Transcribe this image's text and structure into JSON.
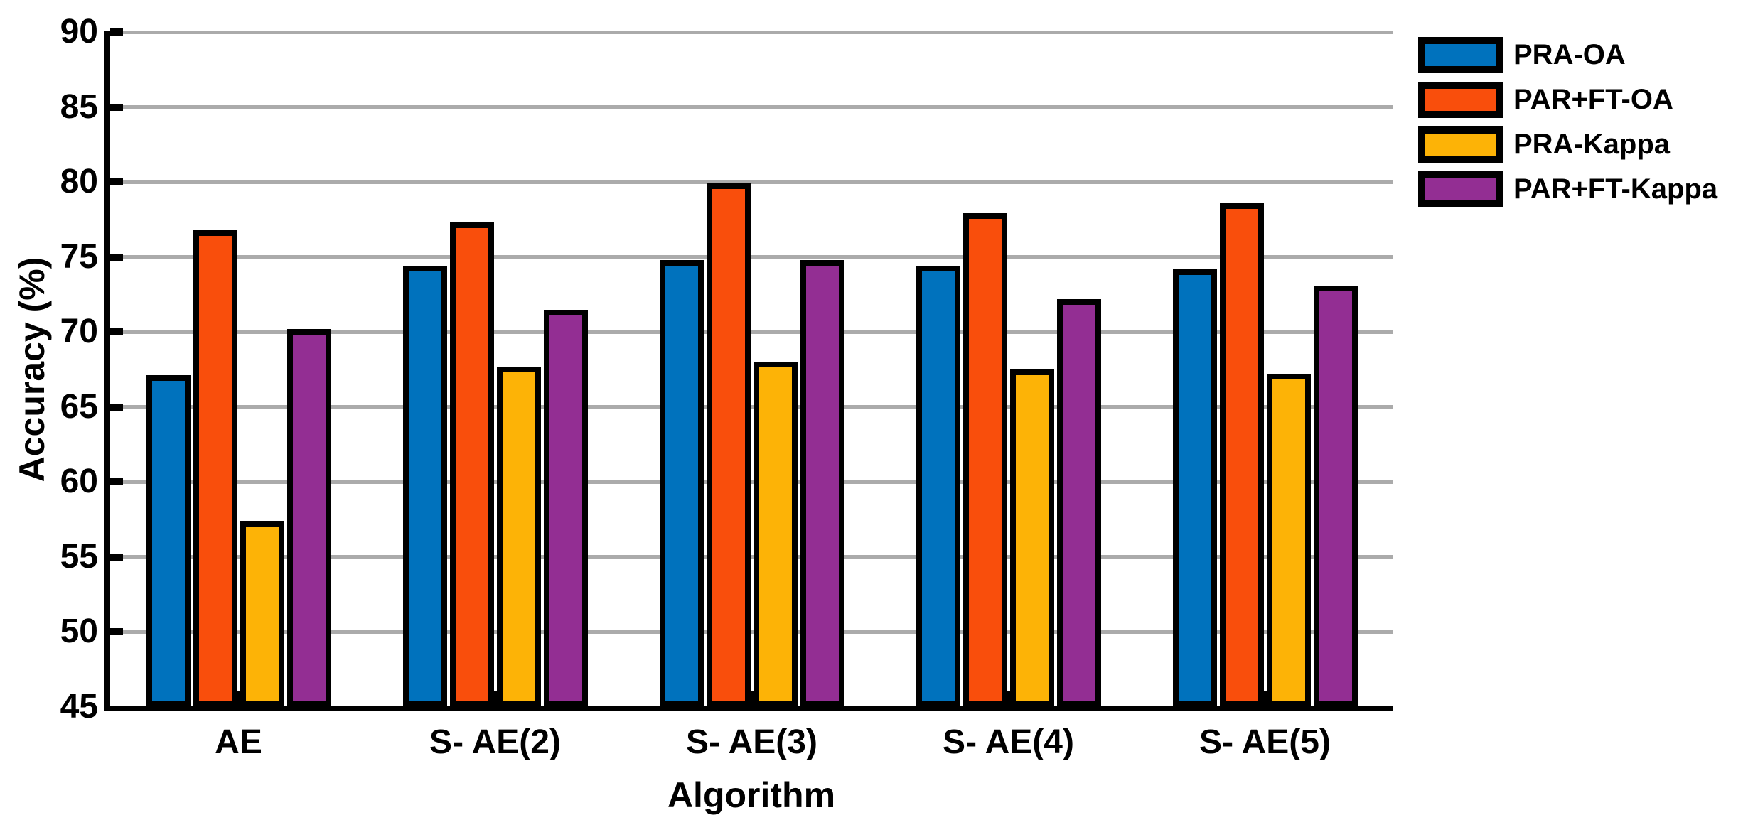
{
  "chart_data": {
    "type": "bar",
    "title": "",
    "xlabel": "Algorithm",
    "ylabel": "Accuracy (%)",
    "ylim": [
      45,
      90
    ],
    "ytick_step": 5,
    "yticks": [
      45,
      50,
      55,
      60,
      65,
      70,
      75,
      80,
      85,
      90
    ],
    "grid": true,
    "grid_color": "#ABABAB",
    "axis_color": "#000000",
    "legend_position": "outside-top-right",
    "categories": [
      "AE",
      "S- AE(2)",
      "S- AE(3)",
      "S- AE(4)",
      "S- AE(5)"
    ],
    "series": [
      {
        "name": "PRA-OA",
        "color": "#0072BD",
        "values": [
          67.1,
          74.4,
          74.8,
          74.4,
          74.2
        ]
      },
      {
        "name": "PAR+FT-OA",
        "color": "#F94E0C",
        "values": [
          76.8,
          77.3,
          79.9,
          77.9,
          78.6
        ]
      },
      {
        "name": "PRA-Kappa",
        "color": "#FDB306",
        "values": [
          57.4,
          67.7,
          68.0,
          67.5,
          67.2
        ]
      },
      {
        "name": "PAR+FT-Kappa",
        "color": "#932E93",
        "values": [
          70.2,
          71.5,
          74.8,
          72.2,
          73.1
        ]
      }
    ]
  }
}
